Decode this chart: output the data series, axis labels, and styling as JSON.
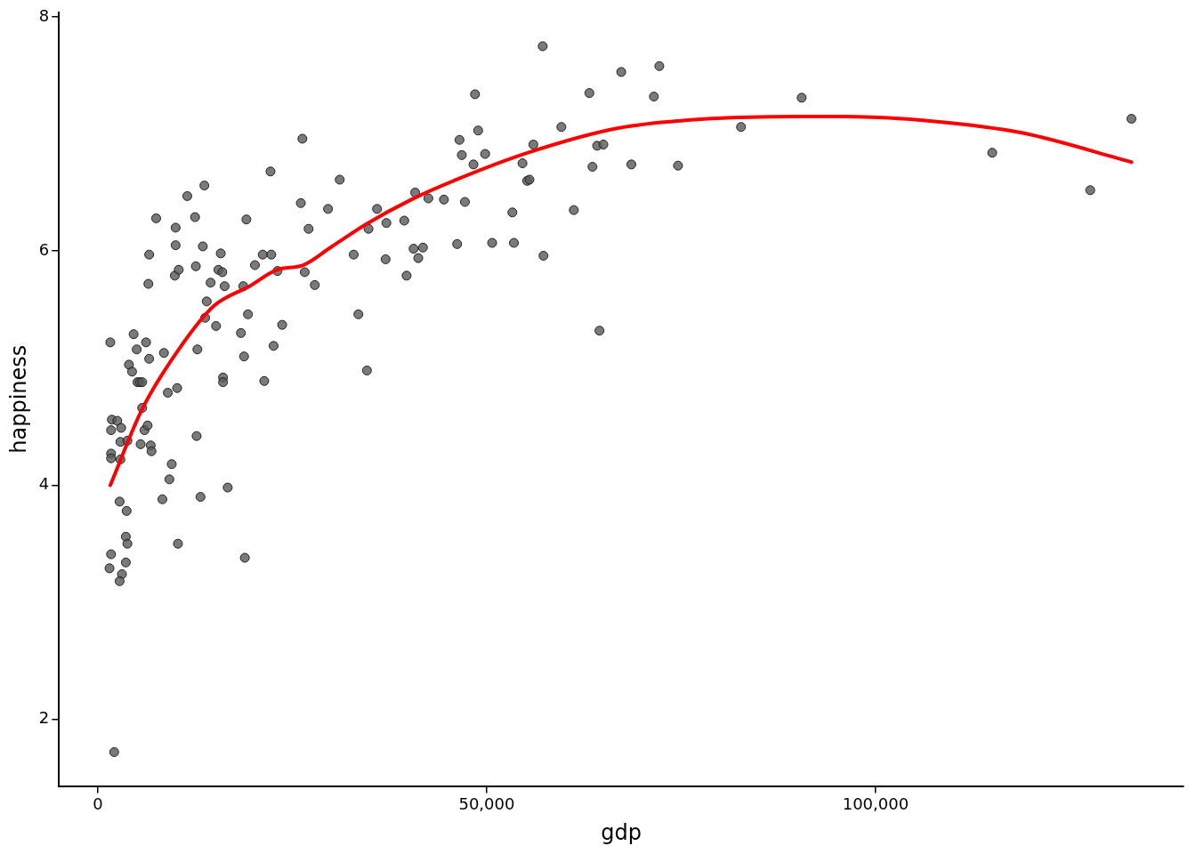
{
  "chart_data": {
    "type": "scatter",
    "xlabel": "gdp",
    "ylabel": "happiness",
    "xlim": [
      -5000,
      139600
    ],
    "ylim": [
      1.43,
      8.04
    ],
    "xticks": [
      {
        "value": 0,
        "label": "0"
      },
      {
        "value": 50000,
        "label": "50,000"
      },
      {
        "value": 100000,
        "label": "100,000"
      }
    ],
    "yticks": [
      2,
      4,
      6,
      8
    ],
    "grid": false,
    "legend": false,
    "marker": "circle",
    "series": [
      {
        "color": "#595959",
        "x": [
          1600,
          1800,
          1700,
          1700,
          1700,
          2500,
          3000,
          2900,
          2900,
          3800,
          4000,
          4400,
          4600,
          5000,
          5100,
          5400,
          5700,
          5700,
          5500,
          6000,
          6400,
          6200,
          6600,
          6600,
          6500,
          6800,
          6900,
          7500,
          2800,
          3700,
          3600,
          3800,
          3600,
          3100,
          2800,
          1700,
          1500,
          2100,
          8300,
          8500,
          9000,
          9200,
          9500,
          10000,
          10000,
          9900,
          10400,
          10200,
          10300,
          11500,
          12500,
          12600,
          12800,
          12700,
          13200,
          13700,
          13500,
          14000,
          13800,
          14500,
          15200,
          15500,
          15800,
          16000,
          16300,
          16100,
          16100,
          16700,
          18400,
          18700,
          18800,
          19100,
          19300,
          18900,
          20200,
          21200,
          21400,
          22200,
          22300,
          22600,
          23100,
          23700,
          26100,
          26300,
          26600,
          27100,
          27900,
          29600,
          31100,
          32900,
          33500,
          34600,
          34800,
          35900,
          37000,
          37100,
          39400,
          39700,
          40600,
          40800,
          41200,
          41800,
          42500,
          44500,
          46200,
          46500,
          46800,
          47200,
          48300,
          48500,
          48900,
          49800,
          50700,
          53300,
          53500,
          54600,
          55200,
          55500,
          56000,
          57200,
          57300,
          59600,
          61200,
          63200,
          63600,
          64200,
          65000,
          64500,
          67300,
          68600,
          71500,
          72200,
          74600,
          82700,
          90500,
          115000,
          127600,
          132900
        ],
        "values": [
          5.22,
          4.56,
          4.47,
          4.27,
          4.23,
          4.55,
          4.49,
          4.37,
          4.22,
          4.38,
          5.03,
          4.97,
          5.29,
          5.16,
          4.88,
          4.88,
          4.88,
          4.66,
          4.35,
          4.47,
          4.51,
          5.22,
          5.08,
          5.97,
          5.72,
          4.34,
          4.29,
          6.28,
          3.86,
          3.78,
          3.56,
          3.5,
          3.34,
          3.24,
          3.18,
          3.41,
          3.29,
          1.72,
          3.88,
          5.13,
          4.79,
          4.05,
          4.18,
          6.2,
          6.05,
          5.79,
          5.84,
          4.83,
          3.5,
          6.47,
          6.29,
          5.87,
          5.16,
          4.42,
          3.9,
          6.56,
          6.04,
          5.57,
          5.43,
          5.73,
          5.36,
          5.84,
          5.98,
          5.82,
          5.7,
          4.92,
          4.88,
          3.98,
          5.3,
          5.7,
          5.1,
          6.27,
          5.46,
          3.38,
          5.88,
          5.97,
          4.89,
          6.68,
          5.97,
          5.19,
          5.83,
          5.37,
          6.41,
          6.96,
          5.82,
          6.19,
          5.71,
          6.36,
          6.61,
          5.97,
          5.46,
          4.98,
          6.19,
          6.36,
          5.93,
          6.24,
          6.26,
          5.79,
          6.02,
          6.5,
          5.94,
          6.03,
          6.45,
          6.44,
          6.06,
          6.95,
          6.82,
          6.42,
          6.74,
          7.34,
          7.03,
          6.83,
          6.07,
          6.33,
          6.07,
          6.75,
          6.6,
          6.61,
          6.91,
          7.75,
          5.96,
          7.06,
          6.35,
          7.35,
          6.72,
          6.9,
          6.91,
          5.32,
          7.53,
          6.74,
          7.32,
          7.58,
          6.73,
          7.06,
          7.31,
          6.84,
          6.52,
          7.13
        ]
      },
      {
        "type": "line",
        "color": "#ff0000",
        "marker": "none",
        "x": [
          1600,
          5700,
          10300,
          14900,
          19500,
          23000,
          26400,
          29900,
          34500,
          40300,
          46100,
          55300,
          66900,
          78400,
          90000,
          95700,
          107300,
          118800,
          132900
        ],
        "values": [
          4.0,
          4.65,
          5.15,
          5.53,
          5.7,
          5.84,
          5.88,
          6.03,
          6.23,
          6.44,
          6.61,
          6.84,
          7.05,
          7.13,
          7.15,
          7.15,
          7.11,
          7.01,
          6.76
        ]
      }
    ]
  }
}
